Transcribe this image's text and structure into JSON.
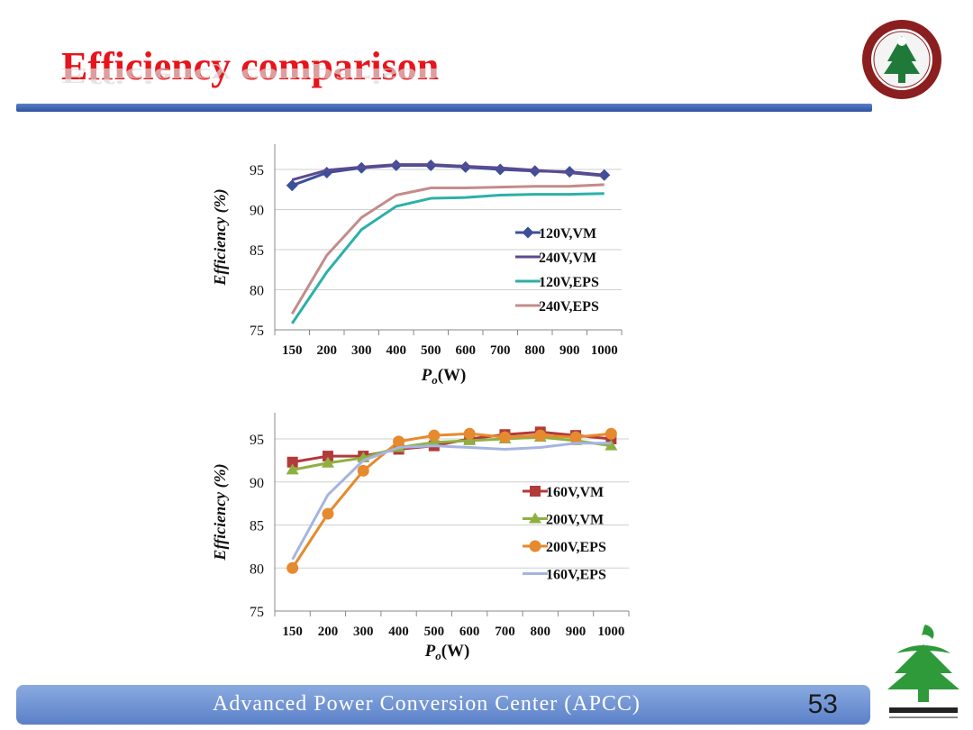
{
  "slide": {
    "title": "Efficiency comparison",
    "footer": "Advanced  Power  Conversion  Center (APCC)",
    "page_number": "53",
    "title_color": "#e8141b",
    "accent_color": "#3a5fae"
  },
  "chart_data": [
    {
      "type": "line",
      "x": [
        150,
        200,
        300,
        400,
        500,
        600,
        700,
        800,
        900,
        1000
      ],
      "xlabel": "P",
      "xlabel_sub": "o",
      "xlabel_unit": "(W)",
      "ylabel": "Efficiency (%)",
      "ylim": [
        75,
        95
      ],
      "yticks": [
        75,
        80,
        85,
        90,
        95
      ],
      "grid": true,
      "legend": "right-center",
      "series": [
        {
          "name": "120V,VM",
          "color": "#3c4f9b",
          "marker": "diamond",
          "values": [
            93.0,
            94.6,
            95.2,
            95.5,
            95.5,
            95.3,
            95.0,
            94.8,
            94.7,
            94.3
          ]
        },
        {
          "name": "240V,VM",
          "color": "#5d4a8f",
          "marker": "none",
          "values": [
            93.7,
            94.9,
            95.3,
            95.6,
            95.6,
            95.4,
            95.2,
            94.9,
            94.6,
            94.2
          ]
        },
        {
          "name": "120V,EPS",
          "color": "#2bb0a8",
          "marker": "none",
          "values": [
            75.8,
            82.2,
            87.5,
            90.4,
            91.4,
            91.5,
            91.8,
            91.9,
            91.9,
            92.0
          ]
        },
        {
          "name": "240V,EPS",
          "color": "#c48b8b",
          "marker": "none",
          "values": [
            77.0,
            84.3,
            89.0,
            91.8,
            92.7,
            92.7,
            92.8,
            92.9,
            92.9,
            93.1
          ]
        }
      ]
    },
    {
      "type": "line",
      "x": [
        150,
        200,
        300,
        400,
        500,
        600,
        700,
        800,
        900,
        1000
      ],
      "xlabel": "P",
      "xlabel_sub": "o",
      "xlabel_unit": "(W)",
      "ylabel": "Efficiency (%)",
      "ylim": [
        75,
        95
      ],
      "yticks": [
        75,
        80,
        85,
        90,
        95
      ],
      "grid": true,
      "legend": "right-center",
      "series": [
        {
          "name": "160V,VM",
          "color": "#b23a3a",
          "marker": "square",
          "values": [
            92.3,
            93.0,
            93.0,
            93.8,
            94.2,
            95.0,
            95.5,
            95.8,
            95.4,
            95.0
          ]
        },
        {
          "name": "200V,VM",
          "color": "#8fb040",
          "marker": "triangle",
          "values": [
            91.4,
            92.2,
            92.8,
            94.0,
            94.6,
            94.8,
            95.0,
            95.2,
            94.8,
            94.2
          ]
        },
        {
          "name": "200V,EPS",
          "color": "#e58a2e",
          "marker": "circle",
          "values": [
            80.0,
            86.3,
            91.3,
            94.7,
            95.4,
            95.6,
            95.2,
            95.4,
            95.2,
            95.6
          ]
        },
        {
          "name": "160V,EPS",
          "color": "#a6b4e0",
          "marker": "none",
          "values": [
            81.0,
            88.5,
            92.5,
            94.0,
            94.2,
            94.0,
            93.8,
            94.0,
            94.5,
            94.5
          ]
        }
      ]
    }
  ]
}
